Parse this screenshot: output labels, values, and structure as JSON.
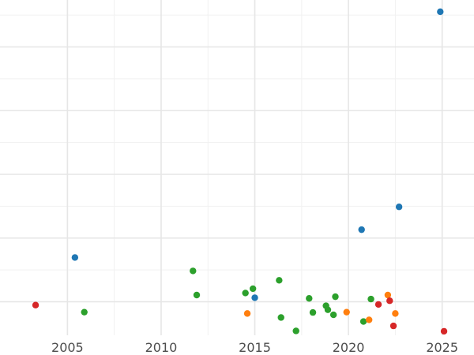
{
  "chart_data": {
    "type": "scatter",
    "title": "",
    "xlabel": "",
    "ylabel": "",
    "xlim": [
      2001.4,
      2026.7
    ],
    "ylim": [
      0,
      100
    ],
    "x_ticks": [
      2005,
      2010,
      2015,
      2020,
      2025
    ],
    "x_minor_ticks": [
      2007.5,
      2012.5,
      2017.5,
      2022.5
    ],
    "y_gridlines": [
      10,
      29,
      48,
      67,
      86
    ],
    "y_minor_gridlines": [
      19.5,
      38.5,
      57.5,
      76.5,
      95.5
    ],
    "y_tick_labels_visible": false,
    "grid": true,
    "legend": "none",
    "series": [
      {
        "color": "#1f77b4",
        "points": [
          {
            "x": 2005.4,
            "y": 23.2
          },
          {
            "x": 2015.0,
            "y": 11.2
          },
          {
            "x": 2020.7,
            "y": 31.5
          },
          {
            "x": 2022.7,
            "y": 38.3
          },
          {
            "x": 2024.9,
            "y": 96.5
          }
        ]
      },
      {
        "color": "#2ca02c",
        "points": [
          {
            "x": 2005.9,
            "y": 6.9
          },
          {
            "x": 2011.7,
            "y": 19.2
          },
          {
            "x": 2011.9,
            "y": 12.0
          },
          {
            "x": 2014.5,
            "y": 12.6
          },
          {
            "x": 2014.9,
            "y": 13.9
          },
          {
            "x": 2016.3,
            "y": 16.4
          },
          {
            "x": 2016.4,
            "y": 5.3
          },
          {
            "x": 2017.2,
            "y": 1.3
          },
          {
            "x": 2017.9,
            "y": 11.0
          },
          {
            "x": 2018.1,
            "y": 6.8
          },
          {
            "x": 2018.8,
            "y": 8.8
          },
          {
            "x": 2018.9,
            "y": 7.6
          },
          {
            "x": 2019.2,
            "y": 6.1
          },
          {
            "x": 2019.3,
            "y": 11.5
          },
          {
            "x": 2020.8,
            "y": 4.1
          },
          {
            "x": 2021.2,
            "y": 10.8
          }
        ]
      },
      {
        "color": "#ff7f0e",
        "points": [
          {
            "x": 2014.6,
            "y": 6.5
          },
          {
            "x": 2019.9,
            "y": 6.9
          },
          {
            "x": 2021.1,
            "y": 4.6
          },
          {
            "x": 2022.1,
            "y": 12.0
          },
          {
            "x": 2022.5,
            "y": 6.5
          }
        ]
      },
      {
        "color": "#d62728",
        "points": [
          {
            "x": 2003.3,
            "y": 9.0
          },
          {
            "x": 2021.6,
            "y": 9.2
          },
          {
            "x": 2022.2,
            "y": 10.3
          },
          {
            "x": 2022.4,
            "y": 2.8
          },
          {
            "x": 2025.1,
            "y": 1.2
          }
        ]
      }
    ]
  }
}
